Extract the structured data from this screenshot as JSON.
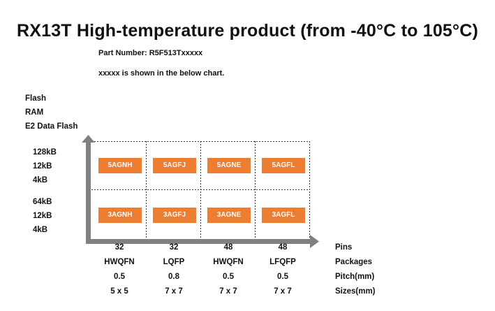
{
  "title": "RX13T  High-temperature product (from -40°C to 105°C)",
  "part_number": "Part Number: R5F513Txxxxx",
  "note": "xxxxx is shown in the below chart.",
  "y_axis_labels": [
    "Flash",
    "RAM",
    "E2 Data Flash"
  ],
  "memory_rows": [
    {
      "flash": "128kB",
      "ram": "12kB",
      "e2": "4kB",
      "codes": [
        "5AGNH",
        "5AGFJ",
        "5AGNE",
        "5AGFL"
      ]
    },
    {
      "flash": "64kB",
      "ram": "12kB",
      "e2": "4kB",
      "codes": [
        "3AGNH",
        "3AGFJ",
        "3AGNE",
        "3AGFL"
      ]
    }
  ],
  "columns": [
    {
      "pins": "32",
      "package": "HWQFN",
      "pitch": "0.5",
      "size": "5 x 5"
    },
    {
      "pins": "32",
      "package": "LQFP",
      "pitch": "0.8",
      "size": "7 x 7"
    },
    {
      "pins": "48",
      "package": "HWQFN",
      "pitch": "0.5",
      "size": "7 x 7"
    },
    {
      "pins": "48",
      "package": "LFQFP",
      "pitch": "0.5",
      "size": "7 x 7"
    }
  ],
  "x_axis_labels": [
    "Pins",
    "Packages",
    "Pitch(mm)",
    "Sizes(mm)"
  ],
  "colors": {
    "chip": "#ed7d31",
    "axis": "#808080",
    "grid": "#333333"
  }
}
